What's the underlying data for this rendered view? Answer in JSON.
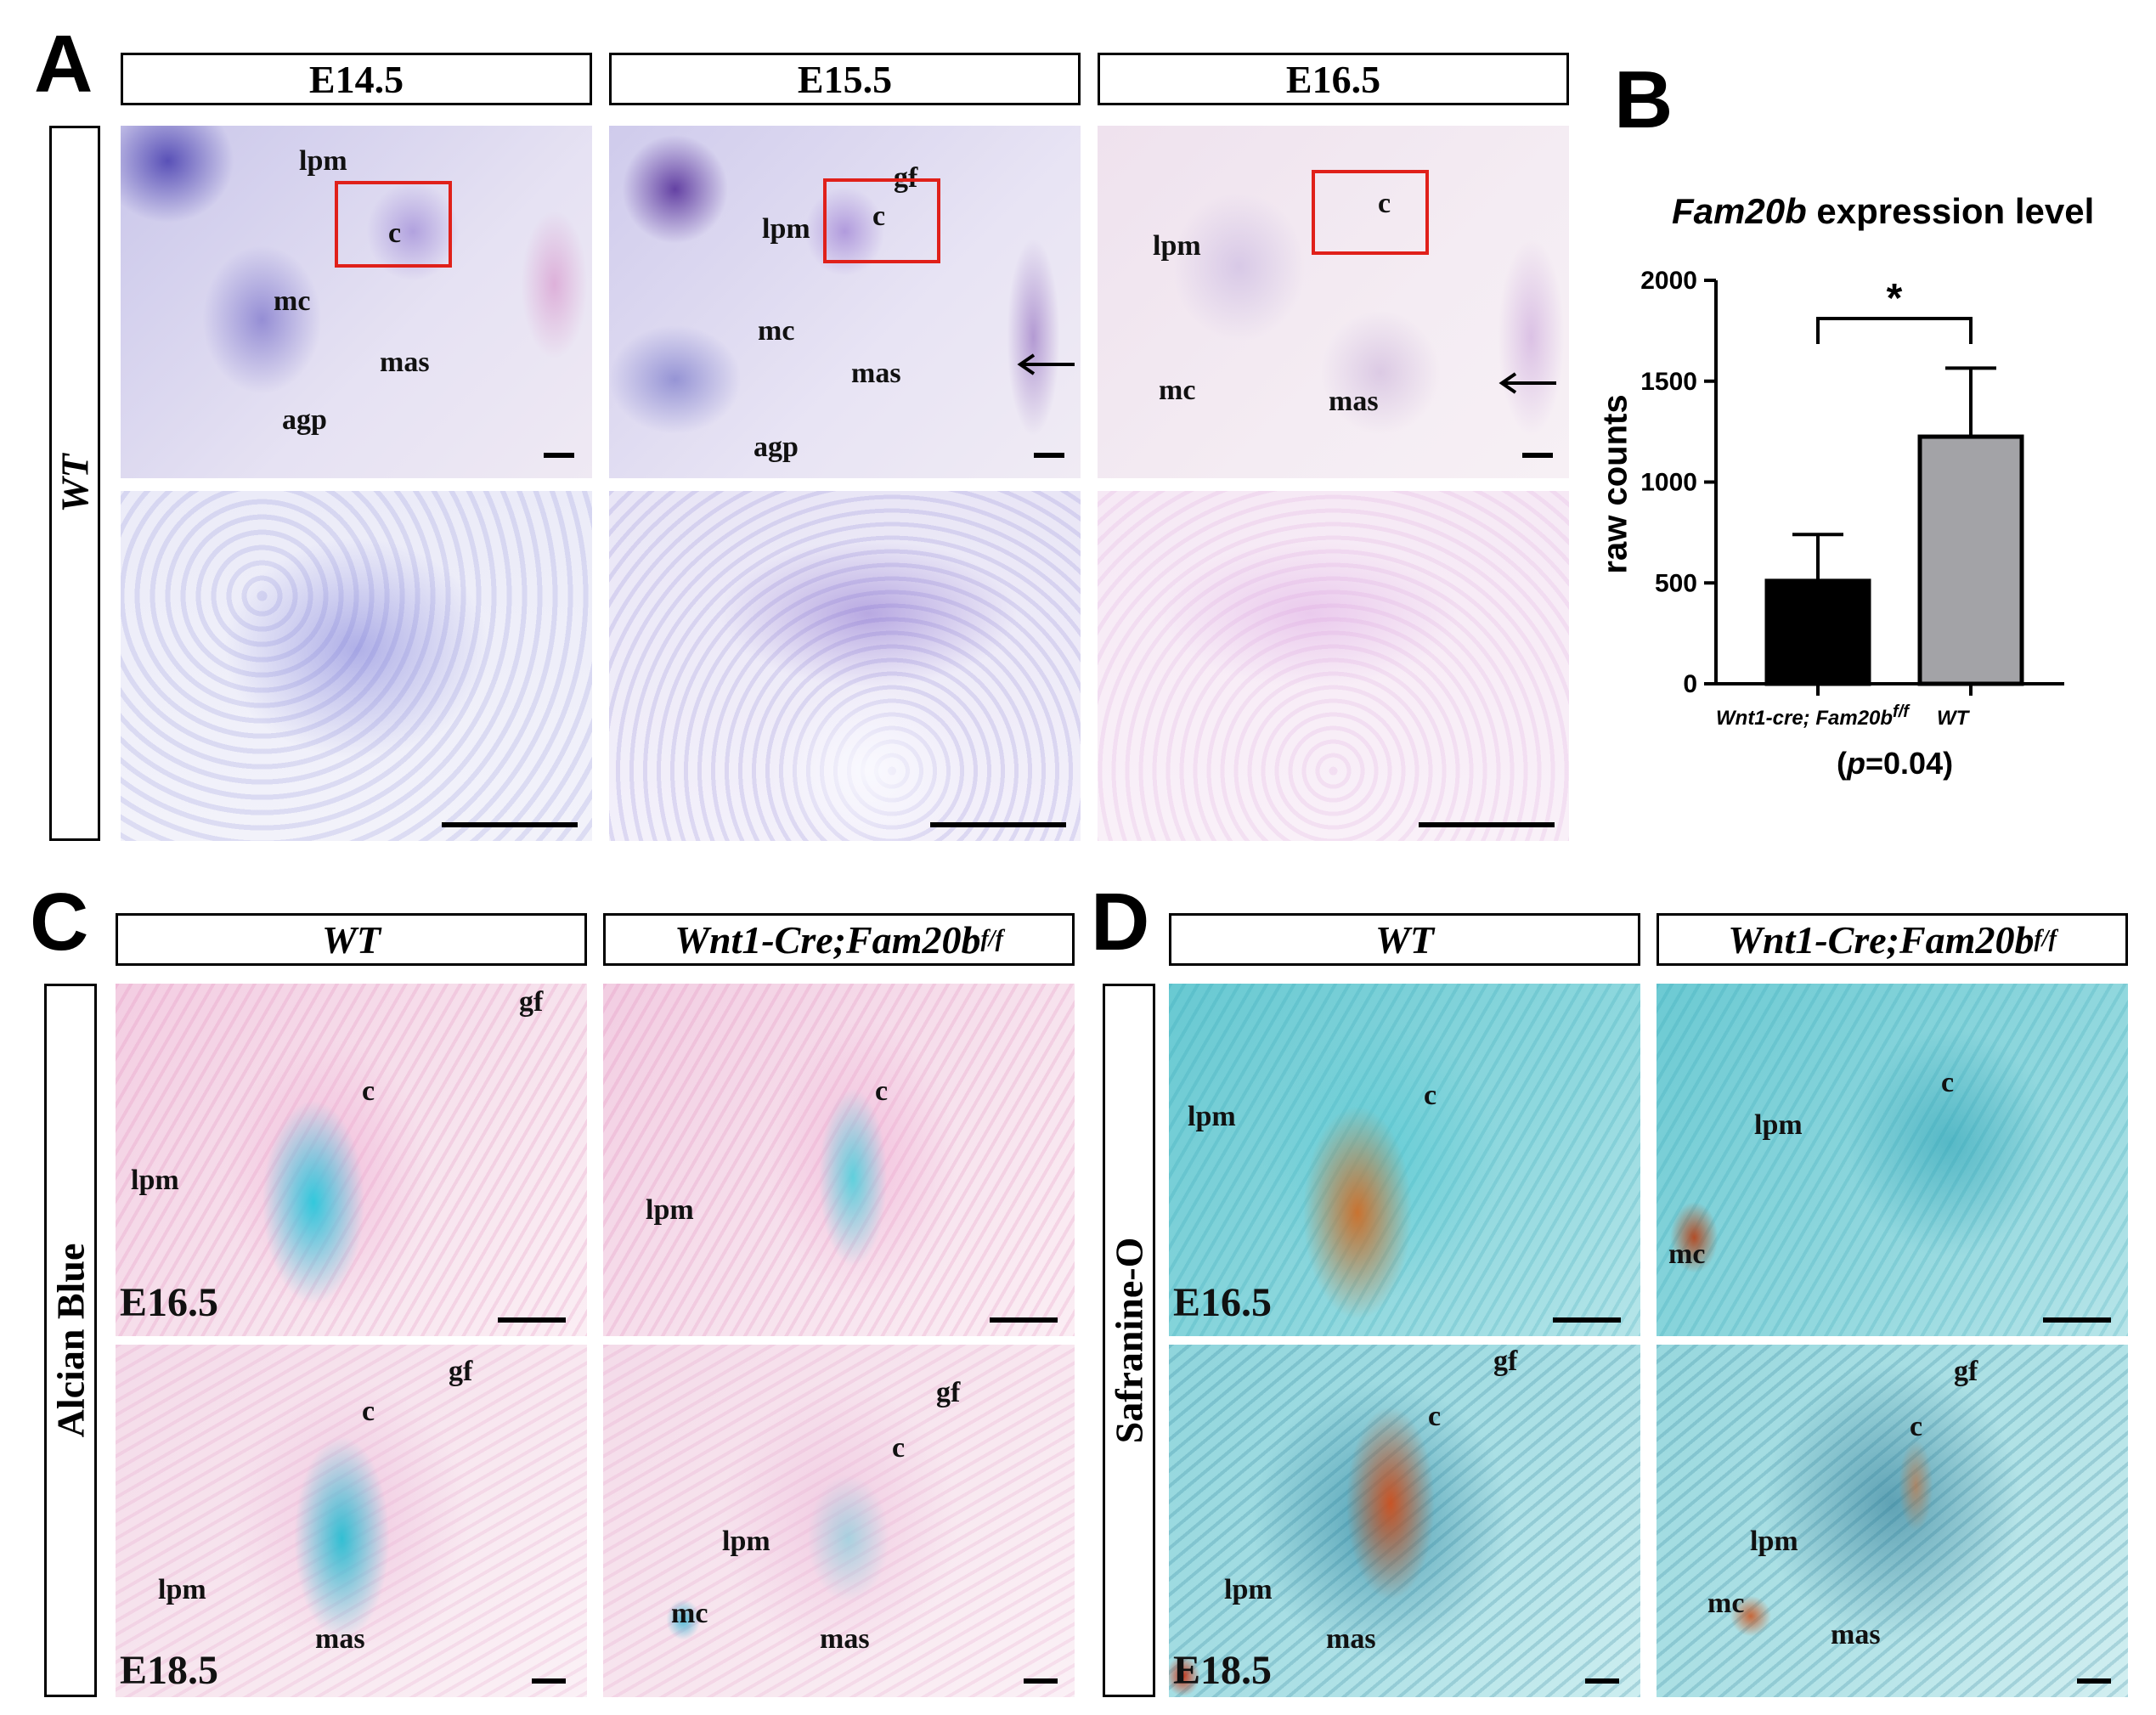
{
  "panelA": {
    "letter": "A",
    "columns": [
      "E14.5",
      "E15.5",
      "E16.5"
    ],
    "row_label": "WT",
    "images": [
      {
        "labels": {
          "lpm": "lpm",
          "c": "c",
          "mc": "mc",
          "mas": "mas",
          "agp": "agp"
        }
      },
      {
        "labels": {
          "gf": "gf",
          "lpm": "lpm",
          "c": "c",
          "mc": "mc",
          "mas": "mas",
          "agp": "agp"
        }
      },
      {
        "labels": {
          "c": "c",
          "lpm": "lpm",
          "mc": "mc",
          "mas": "mas"
        }
      }
    ]
  },
  "panelB": {
    "letter": "B",
    "chart_data": {
      "type": "bar",
      "title": "Fam20b expression level",
      "title_gene": "Fam20b",
      "title_rest": " expression level",
      "ylabel": "raw counts",
      "ylim": [
        0,
        2000
      ],
      "yticks": [
        0,
        500,
        1000,
        1500,
        2000
      ],
      "categories": [
        "Wnt1-cre; Fam20bf/f",
        "WT"
      ],
      "category_display": [
        {
          "main": "Wnt1-cre; Fam20b",
          "sup": "f/f"
        },
        {
          "main": "WT",
          "sup": ""
        }
      ],
      "values": [
        510,
        1225
      ],
      "errors": [
        230,
        340
      ],
      "bar_colors": [
        "#000000",
        "#a3a3a7"
      ],
      "significance": "*",
      "pvalue_text": "p=0.04",
      "pvalue_prefix": "(",
      "pvalue_p": "p",
      "pvalue_rest": "=0.04)"
    }
  },
  "panelC": {
    "letter": "C",
    "columns": [
      {
        "main": "WT",
        "sup": ""
      },
      {
        "main": "Wnt1-Cre;Fam20b",
        "sup": "f/f"
      }
    ],
    "row_label": "Alcian Blue",
    "stage_top": "E16.5",
    "stage_bottom": "E18.5",
    "labels": {
      "gf": "gf",
      "c": "c",
      "lpm": "lpm",
      "mc": "mc",
      "mas": "mas"
    }
  },
  "panelD": {
    "letter": "D",
    "columns": [
      {
        "main": "WT",
        "sup": ""
      },
      {
        "main": "Wnt1-Cre;Fam20b",
        "sup": "f/f"
      }
    ],
    "row_label": "Safranine-O",
    "stage_top": "E16.5",
    "stage_bottom": "E18.5",
    "labels": {
      "gf": "gf",
      "c": "c",
      "lpm": "lpm",
      "mc": "mc",
      "mas": "mas"
    }
  }
}
